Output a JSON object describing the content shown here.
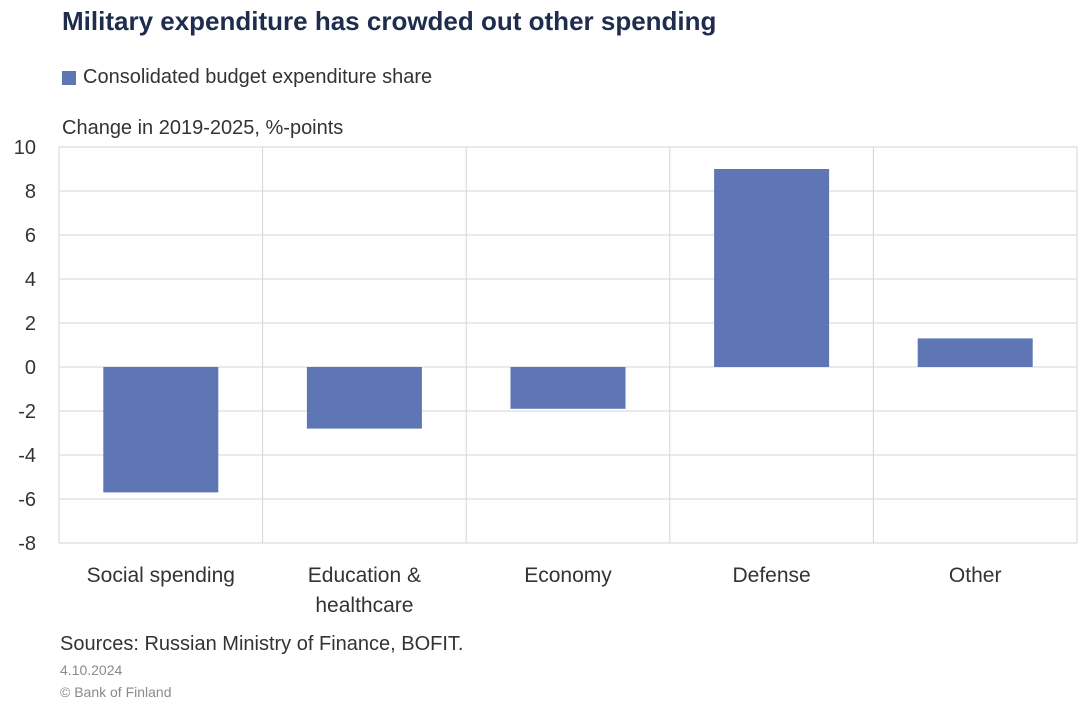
{
  "title": "Military expenditure has crowded out other spending",
  "footer": {
    "sources": "Sources: Russian Ministry of Finance, BOFIT.",
    "date": "4.10.2024",
    "copyright": "© Bank of Finland"
  },
  "colors": {
    "bar": "#5e76b4",
    "grid": "#d4d4d4",
    "title": "#1f2d4d"
  },
  "chart_data": {
    "type": "bar",
    "subtitle": "Change in 2019-2025, %-points",
    "categories": [
      [
        "Social spending"
      ],
      [
        "Education &",
        "healthcare"
      ],
      [
        "Economy"
      ],
      [
        "Defense"
      ],
      [
        "Other"
      ]
    ],
    "series": [
      {
        "name": "Consolidated budget expenditure share",
        "values": [
          -5.7,
          -2.8,
          -1.9,
          9.0,
          1.3
        ]
      }
    ],
    "ylim": [
      -8,
      10
    ],
    "yticks": [
      10,
      8,
      6,
      4,
      2,
      0,
      -2,
      -4,
      -6,
      -8
    ],
    "grid": true,
    "legend": "top-left"
  }
}
